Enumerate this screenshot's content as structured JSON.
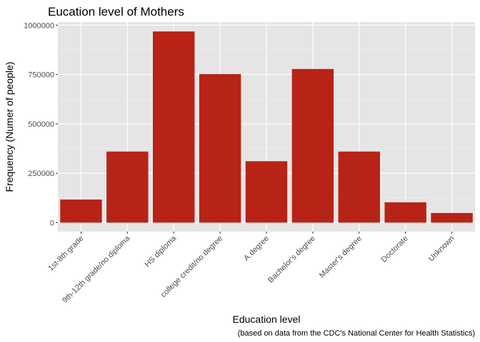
{
  "chart_data": {
    "type": "bar",
    "title": "Eucation level of Mothers",
    "xlabel": "Education level",
    "ylabel": "Frequency (Numer of people)",
    "caption": "(based on data from the CDC's National Center for Health Statistics)",
    "categories": [
      "1st-8th grade",
      "9th-12th grade/no diploma",
      "HS diploma",
      "college credit/no degree",
      "A.degree",
      "Bachelor's degree",
      "Master's degree",
      "Doctorate",
      "Unknown"
    ],
    "values": [
      117000,
      360000,
      968000,
      752000,
      311000,
      778000,
      360000,
      103000,
      49000
    ],
    "ylim": [
      0,
      1000000
    ],
    "y_ticks": [
      0,
      250000,
      500000,
      750000,
      1000000
    ],
    "y_tick_labels": [
      "0",
      "250000",
      "500000",
      "750000",
      "1000000"
    ],
    "grid": true,
    "colors": {
      "bar": "#B72317",
      "panel": "#E5E5E5",
      "grid_major": "#FFFFFF",
      "grid_minor": "#F2F2F2",
      "tick_text": "#4D4D4D",
      "tick_line": "#333333"
    }
  }
}
